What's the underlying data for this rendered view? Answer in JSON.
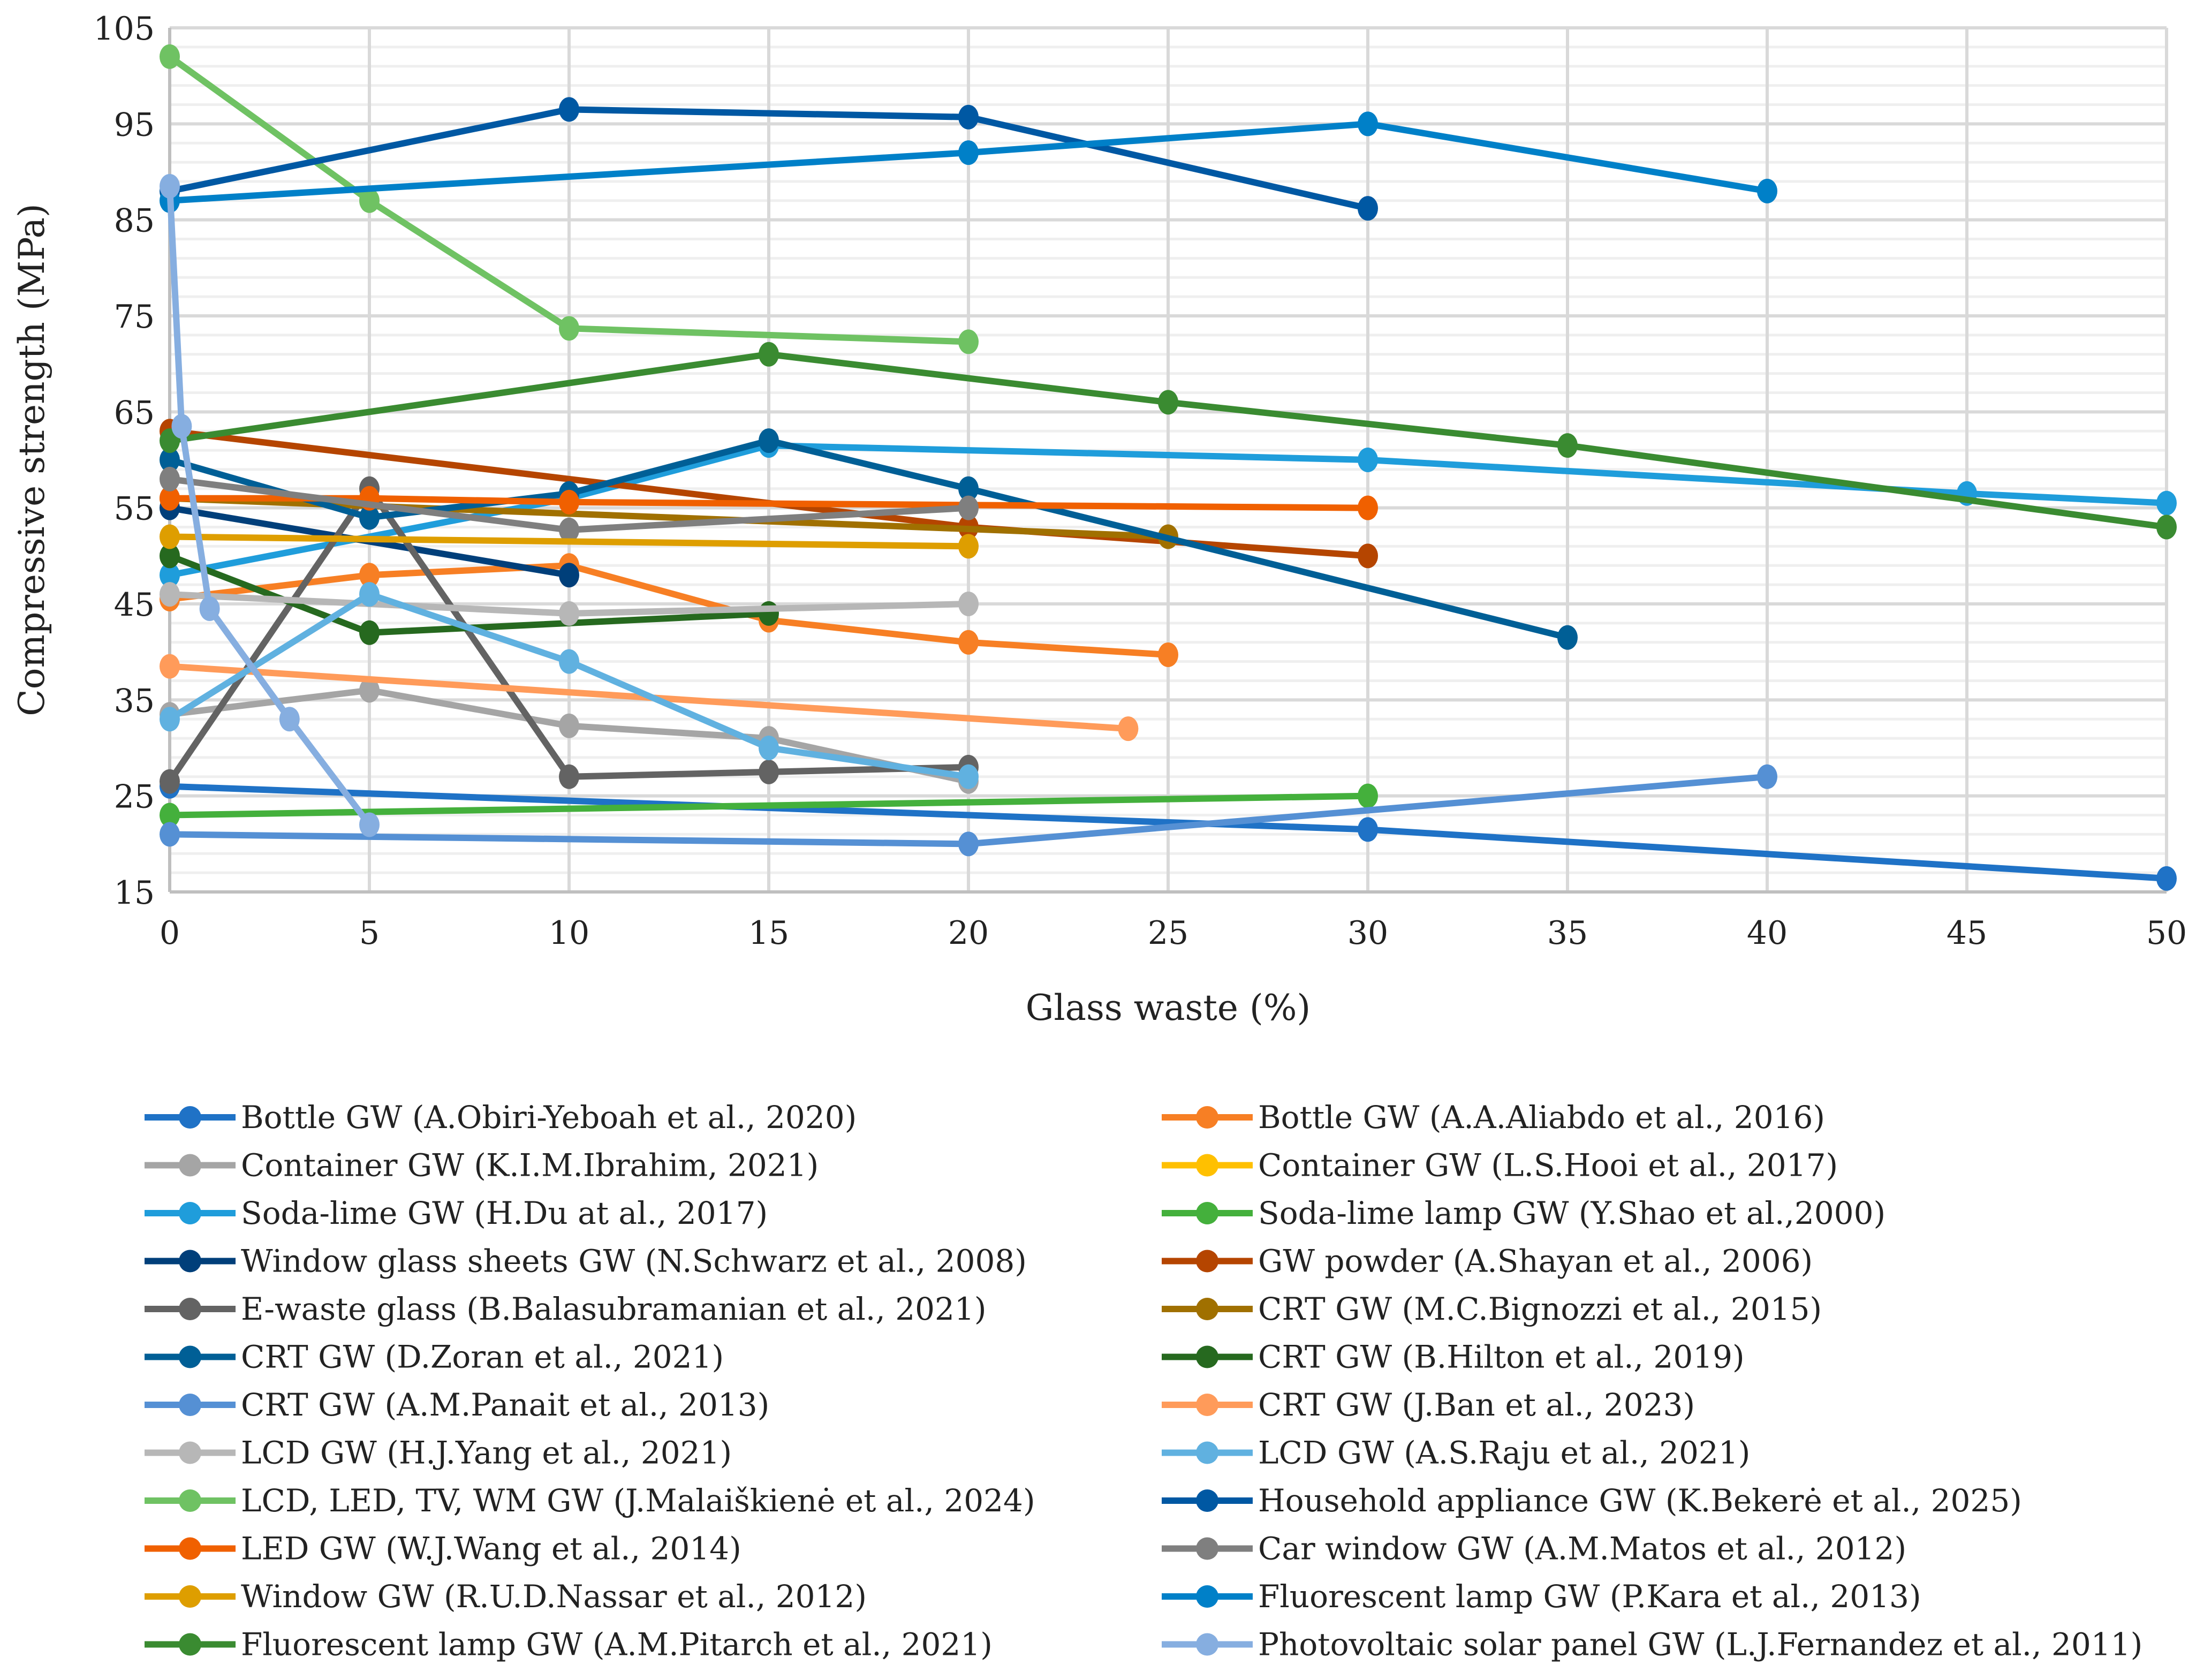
{
  "chart_data": {
    "type": "line",
    "title": "",
    "xlabel": "Glass waste (%)",
    "ylabel": "Compressive strength (MPa)",
    "xlim": [
      0,
      50
    ],
    "ylim": [
      15,
      105
    ],
    "xticks": [
      0,
      5,
      10,
      15,
      20,
      25,
      30,
      35,
      40,
      45,
      50
    ],
    "yticks": [
      15,
      25,
      35,
      45,
      55,
      65,
      75,
      85,
      95,
      105
    ],
    "grid": true,
    "legend_placement": "bottom",
    "series": [
      {
        "name": "Bottle GW (A.Obiri-Yeboah et al., 2020)",
        "color": "#1f72c6",
        "x": [
          0,
          30,
          50
        ],
        "y": [
          26,
          21.5,
          16.4
        ]
      },
      {
        "name": "Bottle GW (A.A.Aliabdo et al., 2016)",
        "color": "#f77f24",
        "x": [
          0,
          5,
          10,
          15,
          20,
          25
        ],
        "y": [
          45.5,
          48,
          49,
          43.3,
          41,
          39.7
        ]
      },
      {
        "name": "Container GW (K.I.M.Ibrahim, 2021)",
        "color": "#a5a5a5",
        "x": [
          0,
          5,
          10,
          15,
          20
        ],
        "y": [
          33.5,
          36,
          32.3,
          31,
          26.5
        ]
      },
      {
        "name": "Container GW (L.S.Hooi et al., 2017)",
        "color": "#ffc000",
        "x": [],
        "y": []
      },
      {
        "name": "Soda-lime GW (H.Du at al., 2017)",
        "color": "#1f9ddb",
        "x": [
          0,
          10,
          15,
          30,
          45,
          50
        ],
        "y": [
          48,
          56,
          61.5,
          60,
          56.5,
          55.5
        ]
      },
      {
        "name": "Soda-lime lamp GW (Y.Shao et al.,2000)",
        "color": "#44b03c",
        "x": [
          0,
          30
        ],
        "y": [
          23,
          25
        ]
      },
      {
        "name": "Window glass sheets GW (N.Schwarz et al., 2008)",
        "color": "#003f7a",
        "x": [
          0,
          10
        ],
        "y": [
          55,
          48
        ]
      },
      {
        "name": "GW powder (A.Shayan et al., 2006)",
        "color": "#b54500",
        "x": [
          0,
          20,
          30
        ],
        "y": [
          63,
          53,
          50
        ]
      },
      {
        "name": "E-waste glass (B.Balasubramanian et al., 2021)",
        "color": "#636363",
        "x": [
          0,
          5,
          10,
          15,
          20
        ],
        "y": [
          26.5,
          57,
          27,
          27.5,
          28
        ]
      },
      {
        "name": "CRT GW (M.C.Bignozzi et al., 2015)",
        "color": "#a07000",
        "x": [
          0,
          25
        ],
        "y": [
          56,
          52
        ]
      },
      {
        "name": "CRT GW (D.Zoran et al., 2021)",
        "color": "#005f96",
        "x": [
          0,
          5,
          10,
          15,
          20,
          35
        ],
        "y": [
          60,
          54,
          56.5,
          62,
          57,
          41.5
        ]
      },
      {
        "name": "CRT GW (B.Hilton et al., 2019)",
        "color": "#26691f",
        "x": [
          0,
          5,
          15
        ],
        "y": [
          50,
          42,
          44
        ]
      },
      {
        "name": "CRT GW (A.M.Panait et al., 2013)",
        "color": "#5590d4",
        "x": [
          0,
          20,
          40
        ],
        "y": [
          21,
          20,
          27
        ]
      },
      {
        "name": "CRT GW (J.Ban et al., 2023)",
        "color": "#ff9b5a",
        "x": [
          0,
          24
        ],
        "y": [
          38.5,
          32
        ]
      },
      {
        "name": "LCD GW (H.J.Yang et al., 2021)",
        "color": "#b7b7b7",
        "x": [
          0,
          10,
          20
        ],
        "y": [
          46,
          44,
          45
        ]
      },
      {
        "name": "LCD GW (A.S.Raju et al., 2021)",
        "color": "#60b1e0",
        "x": [
          0,
          5,
          10,
          15,
          20
        ],
        "y": [
          33,
          46,
          39,
          30,
          27
        ]
      },
      {
        "name": "LCD, LED, TV, WM GW (J.Malaiškienė et al., 2024)",
        "color": "#6fc263",
        "x": [
          0,
          5,
          10,
          20
        ],
        "y": [
          102,
          87,
          73.7,
          72.3
        ]
      },
      {
        "name": "Household appliance GW (K.Bekerė et al., 2025)",
        "color": "#0058a3",
        "x": [
          0,
          10,
          20,
          30
        ],
        "y": [
          88,
          96.5,
          95.7,
          86.2
        ]
      },
      {
        "name": "LED GW (W.J.Wang et al., 2014)",
        "color": "#f06000",
        "x": [
          0,
          5,
          10,
          30
        ],
        "y": [
          56,
          56,
          55.6,
          55
        ]
      },
      {
        "name": "Car window GW (A.M.Matos et al., 2012)",
        "color": "#7f7f7f",
        "x": [
          0,
          10,
          20
        ],
        "y": [
          58,
          52.7,
          55
        ]
      },
      {
        "name": "Window GW (R.U.D.Nassar et al., 2012)",
        "color": "#de9e00",
        "x": [
          0,
          20
        ],
        "y": [
          52,
          51
        ]
      },
      {
        "name": "Fluorescent lamp GW (P.Kara et al., 2013)",
        "color": "#0080c8",
        "x": [
          0,
          20,
          30,
          40
        ],
        "y": [
          87,
          92,
          95,
          88
        ]
      },
      {
        "name": "Fluorescent lamp GW (A.M.Pitarch et al., 2021)",
        "color": "#3a8b31",
        "x": [
          0,
          15,
          25,
          35,
          50
        ],
        "y": [
          62,
          71,
          66,
          61.5,
          53
        ]
      },
      {
        "name": "Photovoltaic solar panel GW (L.J.Fernandez et al., 2011)",
        "color": "#86aee0",
        "x": [
          0,
          0.3,
          1,
          3,
          5
        ],
        "y": [
          88.5,
          63.5,
          44.5,
          33,
          22
        ]
      }
    ]
  }
}
